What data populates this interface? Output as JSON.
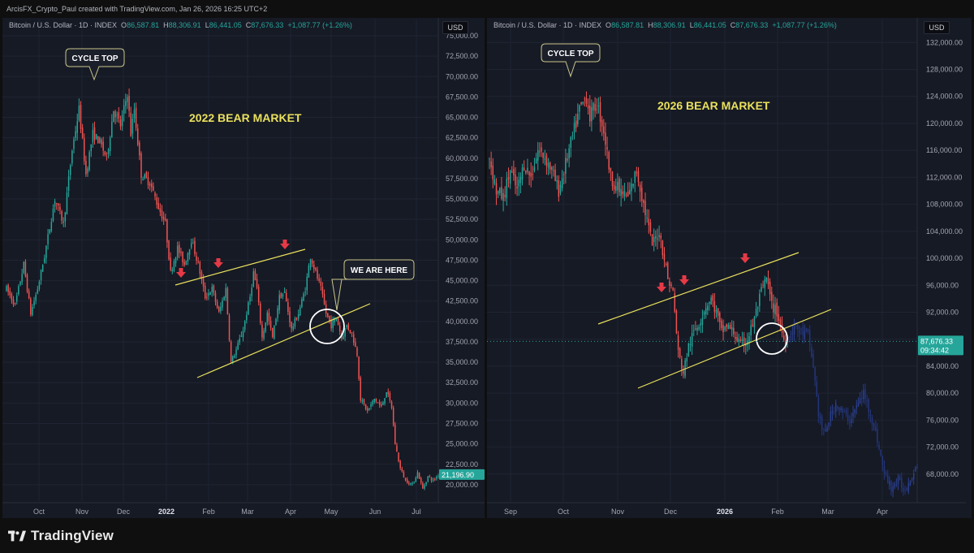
{
  "header": {
    "text": "ArcisFX_Crypto_Paul created with TradingView.com, Jan 26, 2026 16:25 UTC+2"
  },
  "colors": {
    "up": "#26a69a",
    "down": "#ef5350",
    "projection": "#2a3f8f",
    "annotation": "#e9e05c",
    "arrow": "#e63946",
    "price_tag": "#26a69a"
  },
  "footer": {
    "brand": "TradingView",
    "logo": "tradingview-logo-icon"
  },
  "left_panel": {
    "legend": {
      "symbol": "Bitcoin / U.S. Dollar · 1D · INDEX",
      "o_label": "O",
      "o": "86,587.81",
      "h_label": "H",
      "h": "88,306.91",
      "l_label": "L",
      "l": "86,441.05",
      "c_label": "C",
      "c": "87,676.33",
      "change": "+1,087.77 (+1.26%)"
    },
    "currency": "USD"
  },
  "right_panel": {
    "legend": {
      "symbol": "Bitcoin / U.S. Dollar · 1D · INDEX",
      "o_label": "O",
      "o": "86,587.81",
      "h_label": "H",
      "h": "88,306.91",
      "l_label": "L",
      "l": "86,441.05",
      "c_label": "C",
      "c": "87,676.33",
      "change": "+1,087.77 (+1.26%)"
    },
    "currency": "USD"
  },
  "chart_data": [
    {
      "type": "candlestick",
      "title": "2022 BEAR MARKET",
      "y_ticks": [
        "75,000.00",
        "72,500.00",
        "70,000.00",
        "67,500.00",
        "65,000.00",
        "62,500.00",
        "60,000.00",
        "57,500.00",
        "55,000.00",
        "52,500.00",
        "50,000.00",
        "47,500.00",
        "45,000.00",
        "42,500.00",
        "40,000.00",
        "37,500.00",
        "35,000.00",
        "32,500.00",
        "30,000.00",
        "27,500.00",
        "25,000.00",
        "22,500.00",
        "20,000.00"
      ],
      "x_ticks": [
        "Oct",
        "Nov",
        "Dec",
        "2022",
        "Feb",
        "Mar",
        "Apr",
        "May",
        "Jun",
        "Jul"
      ],
      "ylim": [
        18000,
        75000
      ],
      "last_price": "21,196.90",
      "path": [
        [
          0,
          44000
        ],
        [
          5,
          42000
        ],
        [
          10,
          47000
        ],
        [
          14,
          41000
        ],
        [
          18,
          44000
        ],
        [
          22,
          48000
        ],
        [
          28,
          55000
        ],
        [
          33,
          52000
        ],
        [
          38,
          61000
        ],
        [
          42,
          66000
        ],
        [
          46,
          58000
        ],
        [
          50,
          63000
        ],
        [
          54,
          62000
        ],
        [
          58,
          60000
        ],
        [
          62,
          66000
        ],
        [
          66,
          64000
        ],
        [
          70,
          68000
        ],
        [
          72,
          63000
        ],
        [
          74,
          66000
        ],
        [
          78,
          58000
        ],
        [
          83,
          57000
        ],
        [
          88,
          54000
        ],
        [
          92,
          52000
        ],
        [
          95,
          46000
        ],
        [
          99,
          49000
        ],
        [
          103,
          47000
        ],
        [
          107,
          50000
        ],
        [
          111,
          47000
        ],
        [
          115,
          43000
        ],
        [
          119,
          44000
        ],
        [
          123,
          41000
        ],
        [
          127,
          44000
        ],
        [
          130,
          35000
        ],
        [
          133,
          36500
        ],
        [
          137,
          39000
        ],
        [
          141,
          43000
        ],
        [
          143,
          46000
        ],
        [
          145,
          44000
        ],
        [
          148,
          38000
        ],
        [
          151,
          41000
        ],
        [
          154,
          38000
        ],
        [
          158,
          43000
        ],
        [
          161,
          43500
        ],
        [
          165,
          39000
        ],
        [
          169,
          41000
        ],
        [
          173,
          44000
        ],
        [
          176,
          48000
        ],
        [
          179,
          46000
        ],
        [
          182,
          44000
        ],
        [
          185,
          41000
        ],
        [
          188,
          39500
        ],
        [
          191,
          40500
        ],
        [
          194,
          38000
        ],
        [
          197,
          39500
        ],
        [
          200,
          38500
        ],
        [
          203,
          36000
        ],
        [
          205,
          30500
        ],
        [
          209,
          29000
        ],
        [
          213,
          30500
        ],
        [
          217,
          29500
        ],
        [
          220,
          31500
        ],
        [
          223,
          29500
        ],
        [
          225,
          25000
        ],
        [
          228,
          22000
        ],
        [
          231,
          20500
        ],
        [
          235,
          20000
        ],
        [
          238,
          21500
        ],
        [
          241,
          19500
        ],
        [
          244,
          21000
        ],
        [
          247,
          20500
        ],
        [
          250,
          21196
        ]
      ],
      "annotations": [
        {
          "text": "CYCLE TOP"
        },
        {
          "text": "WE ARE HERE"
        }
      ],
      "arrows": [
        {
          "note": "red arrow 1"
        },
        {
          "note": "red arrow 2"
        },
        {
          "note": "red arrow 3"
        }
      ]
    },
    {
      "type": "candlestick",
      "title": "2026 BEAR MARKET",
      "y_ticks": [
        "132,000.00",
        "128,000.00",
        "124,000.00",
        "120,000.00",
        "116,000.00",
        "112,000.00",
        "108,000.00",
        "104,000.00",
        "100,000.00",
        "96,000.00",
        "92,000.00",
        "88,000.00",
        "84,000.00",
        "80,000.00",
        "76,000.00",
        "72,000.00",
        "68,000.00"
      ],
      "x_ticks": [
        "Sep",
        "Oct",
        "Nov",
        "Dec",
        "2026",
        "Feb",
        "Mar",
        "Apr"
      ],
      "ylim": [
        64000,
        133000
      ],
      "last_price": "87,676.33",
      "countdown": "09:34:42",
      "path": [
        [
          0,
          115000
        ],
        [
          4,
          110000
        ],
        [
          8,
          109000
        ],
        [
          12,
          113000
        ],
        [
          16,
          110000
        ],
        [
          20,
          114000
        ],
        [
          24,
          112000
        ],
        [
          28,
          116000
        ],
        [
          32,
          115000
        ],
        [
          36,
          113000
        ],
        [
          40,
          110000
        ],
        [
          44,
          114000
        ],
        [
          48,
          118000
        ],
        [
          52,
          122000
        ],
        [
          56,
          124000
        ],
        [
          58,
          121000
        ],
        [
          62,
          123000
        ],
        [
          66,
          119000
        ],
        [
          70,
          112000
        ],
        [
          75,
          110000
        ],
        [
          80,
          109000
        ],
        [
          85,
          113000
        ],
        [
          89,
          108000
        ],
        [
          94,
          102000
        ],
        [
          98,
          104000
        ],
        [
          101,
          100000
        ],
        [
          103,
          97000
        ],
        [
          106,
          95000
        ],
        [
          109,
          86000
        ],
        [
          112,
          83000
        ],
        [
          115,
          87000
        ],
        [
          118,
          89000
        ],
        [
          122,
          91000
        ],
        [
          125,
          93000
        ],
        [
          128,
          94000
        ],
        [
          131,
          92000
        ],
        [
          134,
          89000
        ],
        [
          137,
          90000
        ],
        [
          141,
          89000
        ],
        [
          145,
          87000
        ],
        [
          149,
          88000
        ],
        [
          153,
          91000
        ],
        [
          157,
          95000
        ],
        [
          160,
          97000
        ],
        [
          163,
          93000
        ],
        [
          166,
          92000
        ],
        [
          168,
          90000
        ],
        [
          170,
          88000
        ],
        [
          172,
          87676
        ]
      ],
      "projection": [
        [
          172,
          87676
        ],
        [
          176,
          90000
        ],
        [
          180,
          89000
        ],
        [
          184,
          88500
        ],
        [
          187,
          84000
        ],
        [
          190,
          77000
        ],
        [
          193,
          73500
        ],
        [
          196,
          76000
        ],
        [
          200,
          78500
        ],
        [
          204,
          77000
        ],
        [
          208,
          76000
        ],
        [
          212,
          78000
        ],
        [
          216,
          80000
        ],
        [
          220,
          77000
        ],
        [
          224,
          73000
        ],
        [
          228,
          68000
        ],
        [
          232,
          66000
        ],
        [
          236,
          67000
        ],
        [
          240,
          65500
        ],
        [
          244,
          68000
        ],
        [
          247,
          69500
        ]
      ],
      "annotations": [
        {
          "text": "CYCLE TOP"
        }
      ],
      "arrows": [
        {
          "note": "red arrow 1"
        },
        {
          "note": "red arrow 2"
        },
        {
          "note": "red arrow 3"
        }
      ]
    }
  ]
}
